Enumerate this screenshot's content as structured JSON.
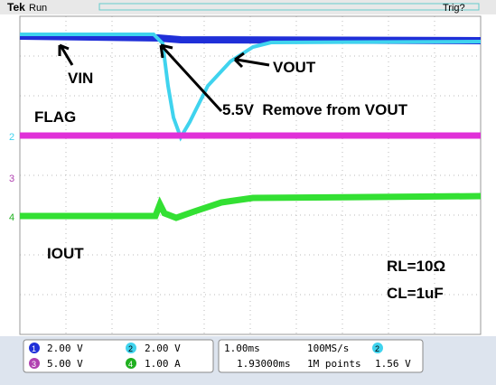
{
  "header": {
    "brand": "Tek",
    "state": "Run",
    "trigger_status": "Trig?"
  },
  "annotations": {
    "vin": "VIN",
    "vout": "VOUT",
    "flag": "FLAG",
    "remove": "5.5V  Remove from VOUT",
    "iout": "IOUT",
    "rl": "RL=10Ω",
    "cl": "CL=1uF"
  },
  "channel_markers": [
    "2",
    "3",
    "4"
  ],
  "status": {
    "channels": [
      {
        "number": "1",
        "scale": "2.00 V"
      },
      {
        "number": "2",
        "scale": "2.00 V"
      },
      {
        "number": "3",
        "scale": "5.00 V"
      },
      {
        "number": "4",
        "scale": "1.00 A"
      }
    ],
    "timebase": "1.00ms",
    "sample_rate": "100MS/s",
    "trigger_position": "1.93000ms",
    "record_length": "1M points",
    "trigger_source": "2",
    "trigger_level": "1.56 V"
  }
}
